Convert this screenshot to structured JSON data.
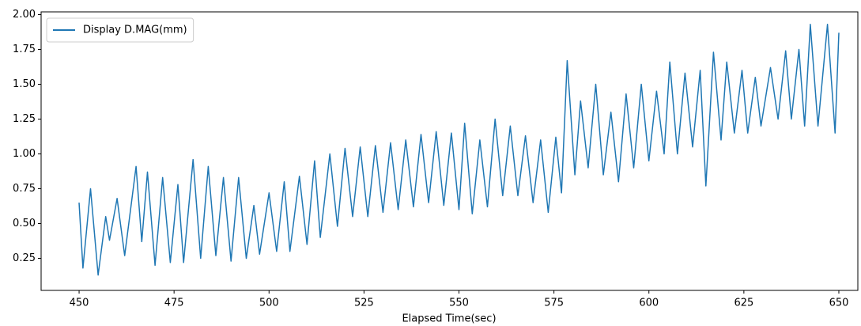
{
  "chart_data": {
    "type": "line",
    "xlabel": "Elapsed Time(sec)",
    "x": [
      450,
      451,
      453,
      455,
      457,
      458,
      460,
      462,
      465,
      466.5,
      468,
      470,
      472,
      474,
      476,
      477.5,
      480,
      482,
      484,
      486,
      488,
      490,
      492,
      494,
      496,
      497.5,
      500,
      502,
      504,
      505.5,
      508,
      510,
      512,
      513.5,
      516,
      518,
      520,
      522,
      524,
      526,
      528,
      530,
      532,
      534,
      536,
      538,
      540,
      542,
      544,
      546,
      548,
      550,
      551.5,
      553.5,
      555.5,
      557.5,
      559.5,
      561.5,
      563.5,
      565.5,
      567.5,
      569.5,
      571.5,
      573.5,
      575.5,
      577,
      578.5,
      580.5,
      582,
      584,
      586,
      588,
      590,
      592,
      594,
      596,
      598,
      600,
      602,
      604,
      605.5,
      607.5,
      609.5,
      611.5,
      613.5,
      615,
      617,
      619,
      620.5,
      622.5,
      624.5,
      626,
      628,
      629.5,
      632,
      634,
      636,
      637.5,
      639.5,
      641,
      642.5,
      644.5,
      647,
      649,
      650
    ],
    "series": [
      {
        "name": "Display D.MAG(mm)",
        "color": "#1f77b4",
        "values": [
          0.65,
          0.18,
          0.75,
          0.13,
          0.55,
          0.38,
          0.68,
          0.27,
          0.91,
          0.37,
          0.87,
          0.2,
          0.83,
          0.22,
          0.78,
          0.22,
          0.96,
          0.25,
          0.91,
          0.27,
          0.83,
          0.23,
          0.83,
          0.25,
          0.63,
          0.28,
          0.72,
          0.3,
          0.8,
          0.3,
          0.84,
          0.35,
          0.95,
          0.4,
          1.0,
          0.48,
          1.04,
          0.55,
          1.05,
          0.55,
          1.06,
          0.58,
          1.08,
          0.6,
          1.1,
          0.62,
          1.14,
          0.65,
          1.16,
          0.63,
          1.15,
          0.6,
          1.22,
          0.57,
          1.1,
          0.62,
          1.25,
          0.7,
          1.2,
          0.7,
          1.13,
          0.65,
          1.1,
          0.58,
          1.12,
          0.72,
          1.67,
          0.85,
          1.38,
          0.9,
          1.5,
          0.85,
          1.3,
          0.8,
          1.43,
          0.9,
          1.5,
          0.95,
          1.45,
          1.0,
          1.66,
          1.0,
          1.58,
          1.05,
          1.6,
          0.77,
          1.73,
          1.1,
          1.66,
          1.15,
          1.6,
          1.15,
          1.55,
          1.2,
          1.62,
          1.25,
          1.74,
          1.25,
          1.75,
          1.2,
          1.93,
          1.2,
          1.93,
          1.15,
          1.87
        ]
      }
    ],
    "xlim": [
      440,
      655
    ],
    "ylim": [
      0.02,
      2.02
    ],
    "xticks": [
      450,
      475,
      500,
      525,
      550,
      575,
      600,
      625,
      650
    ],
    "yticks": [
      {
        "value": 0.25,
        "label": "0.25"
      },
      {
        "value": 0.5,
        "label": "0.50"
      },
      {
        "value": 0.75,
        "label": "0.75"
      },
      {
        "value": 1,
        "label": "1.00"
      },
      {
        "value": 1.25,
        "label": "1.25"
      },
      {
        "value": 1.5,
        "label": "1.50"
      },
      {
        "value": 1.75,
        "label": "1.75"
      },
      {
        "value": 2,
        "label": "2.00"
      }
    ],
    "legend": "upper left"
  }
}
